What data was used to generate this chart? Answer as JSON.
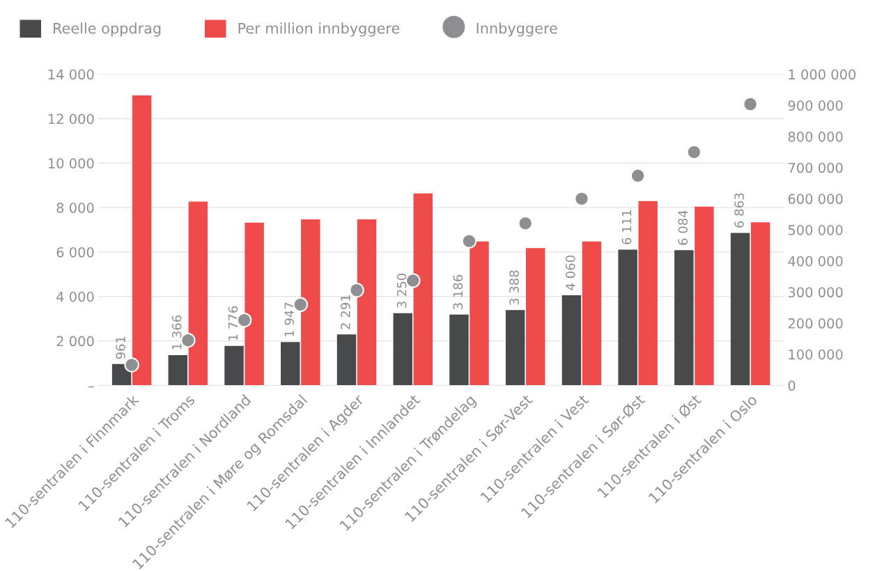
{
  "chart_data": {
    "type": "bar",
    "categories": [
      "110-sentralen i Finnmark",
      "110-sentralen i Troms",
      "110-sentralen i Nordland",
      "110-sentralen i Møre og Romsdal",
      "110-sentralen i Agder",
      "110-sentralen i Innlandet",
      "110-sentralen i Trøndelag",
      "110-sentralen i Sør-Vest",
      "110-sentralen i Vest",
      "110-sentralen i Sør-Øst",
      "110-sentralen i Øst",
      "110-sentralen i Oslo"
    ],
    "series": [
      {
        "name": "Reelle oppdrag",
        "color": "#48494b",
        "values": [
          961,
          1366,
          1776,
          1947,
          2291,
          3250,
          3186,
          3388,
          4060,
          6111,
          6084,
          6863
        ],
        "value_labels": [
          "961",
          "1 366",
          "1 776",
          "1 947",
          "2 291",
          "3 250",
          "3 186",
          "3 388",
          "4 060",
          "6 111",
          "6 084",
          "6 863"
        ]
      },
      {
        "name": "Per million innbyggere",
        "color": "#ef4b4b",
        "values": [
          13050,
          8270,
          7320,
          7470,
          7470,
          8640,
          6480,
          6180,
          6480,
          8290,
          8040,
          7340
        ]
      },
      {
        "name": "Innbyggere",
        "type": "scatter",
        "axis": "y2",
        "color": "#8e8f93",
        "values": [
          66000,
          145000,
          210000,
          260000,
          306000,
          337000,
          464000,
          521000,
          600000,
          674000,
          750000,
          904000
        ]
      }
    ],
    "ylim": [
      0,
      14000
    ],
    "yticks": [
      {
        "value": 0,
        "label": "–"
      },
      {
        "value": 2000,
        "label": "2 000"
      },
      {
        "value": 4000,
        "label": "4 000"
      },
      {
        "value": 6000,
        "label": "6 000"
      },
      {
        "value": 8000,
        "label": "8 000"
      },
      {
        "value": 10000,
        "label": "10 000"
      },
      {
        "value": 12000,
        "label": "12 000"
      },
      {
        "value": 14000,
        "label": "14 000"
      }
    ],
    "y2lim": [
      0,
      1000000
    ],
    "y2ticks": [
      0,
      {
        "value": 100000,
        "label": "100 000"
      },
      {
        "value": 200000,
        "label": "200 000"
      },
      {
        "value": 300000,
        "label": "300 000"
      },
      {
        "value": 400000,
        "label": "400 000"
      },
      {
        "value": 500000,
        "label": "500 000"
      },
      {
        "value": 600000,
        "label": "600 000"
      },
      {
        "value": 700000,
        "label": "700 000"
      },
      {
        "value": 800000,
        "label": "800 000"
      },
      {
        "value": 900000,
        "label": "900 000"
      },
      {
        "value": 1000000,
        "label": "1 000 000"
      }
    ],
    "grid": "y",
    "legend": "top left",
    "marker": "circle"
  }
}
